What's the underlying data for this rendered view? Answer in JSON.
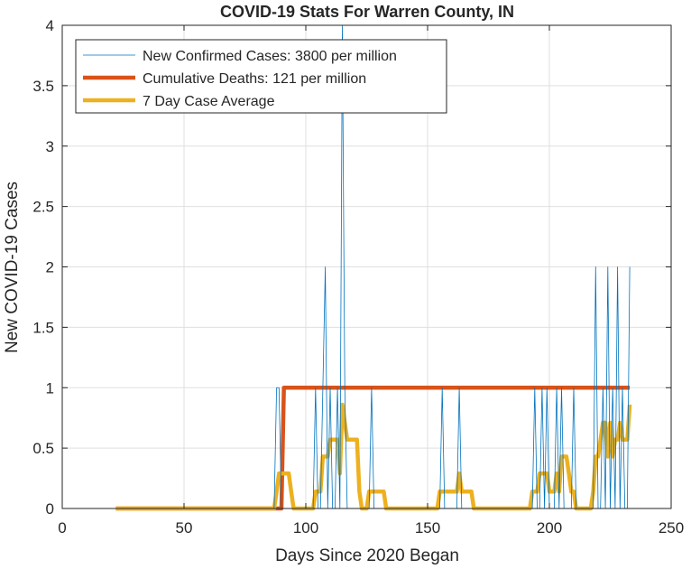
{
  "chart_data": {
    "type": "line",
    "title": "COVID-19 Stats For Warren County, IN",
    "xlabel": "Days Since 2020 Began",
    "ylabel": "New COVID-19 Cases",
    "xlim": [
      0,
      250
    ],
    "ylim": [
      0,
      4
    ],
    "xticks": [
      0,
      50,
      100,
      150,
      200,
      250
    ],
    "yticks": [
      0,
      0.5,
      1,
      1.5,
      2,
      2.5,
      3,
      3.5,
      4
    ],
    "xtick_labels": [
      "0",
      "50",
      "100",
      "150",
      "200",
      "250"
    ],
    "ytick_labels": [
      "0",
      "0.5",
      "1",
      "1.5",
      "2",
      "2.5",
      "3",
      "3.5",
      "4"
    ],
    "grid": true,
    "legend_position": "top-left",
    "series": [
      {
        "name": "New Confirmed Cases: 3800 per million",
        "color": "#0072BD",
        "line_width": 0.8,
        "x": [
          22,
          87,
          88,
          89,
          90,
          103,
          104,
          105,
          106,
          107,
          108,
          109,
          110,
          111,
          112,
          113,
          114,
          115,
          116,
          117,
          118,
          126,
          127,
          128,
          155,
          156,
          157,
          162,
          163,
          164,
          193,
          194,
          195,
          196,
          197,
          198,
          199,
          200,
          201,
          202,
          203,
          204,
          205,
          206,
          207,
          208,
          209,
          210,
          211,
          212,
          213,
          214,
          215,
          216,
          217,
          218,
          219,
          220,
          221,
          222,
          223,
          224,
          225,
          226,
          227,
          228,
          229,
          230,
          231,
          232,
          233
        ],
        "y": [
          0,
          0,
          1,
          1,
          0,
          0,
          1,
          0,
          0,
          1,
          2,
          0,
          1,
          0,
          0,
          1,
          0,
          4,
          1,
          0,
          0,
          0,
          1,
          0,
          0,
          1,
          0,
          0,
          1,
          0,
          0,
          1,
          0,
          0,
          1,
          0,
          1,
          0,
          0,
          0,
          1,
          0,
          1,
          0,
          0,
          0,
          0,
          1,
          0,
          0,
          0,
          0,
          0,
          0,
          0,
          0,
          2,
          0,
          0,
          1,
          0,
          2,
          0,
          1,
          0,
          2,
          0,
          1,
          0,
          0,
          2
        ]
      },
      {
        "name": "Cumulative Deaths: 121 per million",
        "color": "#D95319",
        "line_width": 4.5,
        "x": [
          22,
          89,
          90,
          91,
          233
        ],
        "y": [
          0,
          0,
          0,
          1,
          1
        ]
      },
      {
        "name": "7 Day Case Average",
        "color": "#EDB120",
        "line_width": 4.5,
        "x": [
          22,
          87,
          88,
          89,
          93,
          94,
          95,
          103,
          104,
          105,
          106,
          107,
          108,
          109,
          110,
          111,
          112,
          113,
          114,
          115,
          116,
          117,
          118,
          119,
          120,
          121,
          122,
          123,
          125,
          126,
          127,
          128,
          132,
          133,
          134,
          154,
          155,
          156,
          157,
          161,
          162,
          163,
          164,
          168,
          169,
          170,
          192,
          193,
          194,
          195,
          196,
          198,
          199,
          200,
          201,
          202,
          203,
          204,
          205,
          206,
          207,
          208,
          209,
          210,
          211,
          212,
          213,
          214,
          215,
          216,
          217,
          218,
          219,
          220,
          221,
          222,
          223,
          224,
          225,
          226,
          227,
          228,
          229,
          230,
          231,
          232,
          233
        ],
        "y": [
          0,
          0,
          0.14,
          0.29,
          0.29,
          0.14,
          0,
          0,
          0.14,
          0.14,
          0.14,
          0.43,
          0.43,
          0.43,
          0.57,
          0.57,
          0.57,
          0.57,
          0.29,
          0.86,
          0.71,
          0.57,
          0.57,
          0.57,
          0.57,
          0.57,
          0.14,
          0,
          0,
          0.14,
          0.14,
          0.14,
          0.14,
          0,
          0,
          0,
          0.14,
          0.14,
          0.14,
          0.14,
          0.14,
          0.29,
          0.14,
          0.14,
          0,
          0,
          0,
          0.14,
          0.14,
          0.14,
          0.29,
          0.29,
          0.29,
          0.14,
          0.14,
          0.14,
          0.29,
          0.14,
          0.43,
          0.43,
          0.43,
          0.29,
          0.14,
          0.14,
          0,
          0,
          0,
          0,
          0,
          0,
          0,
          0.14,
          0.43,
          0.43,
          0.57,
          0.71,
          0.71,
          0.43,
          0.71,
          0.43,
          0.57,
          0.57,
          0.71,
          0.57,
          0.57,
          0.57,
          0.86
        ]
      }
    ]
  }
}
